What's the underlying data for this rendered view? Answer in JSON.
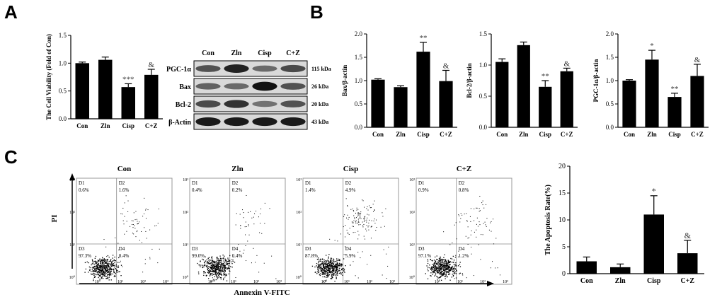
{
  "panels": {
    "a": "A",
    "b": "B",
    "c": "C"
  },
  "chart_data": [
    {
      "id": "cell-viability",
      "type": "bar",
      "categories": [
        "Con",
        "Zln",
        "Cisp",
        "C+Z"
      ],
      "values": [
        1.0,
        1.06,
        0.57,
        0.79
      ],
      "errors": [
        0.02,
        0.05,
        0.06,
        0.1
      ],
      "annotations": [
        "",
        "",
        "***",
        "&"
      ],
      "ylabel": "The Cell Viability (Fold of Con)",
      "ylim": [
        0,
        1.5
      ],
      "yticks": [
        "0.0",
        "0.5",
        "1.0",
        "1.5"
      ]
    },
    {
      "id": "bax-actin",
      "type": "bar",
      "categories": [
        "Con",
        "Zln",
        "Cisp",
        "C+Z"
      ],
      "values": [
        1.02,
        0.86,
        1.62,
        0.99
      ],
      "errors": [
        0.02,
        0.03,
        0.2,
        0.23
      ],
      "annotations": [
        "",
        "",
        "**",
        "&"
      ],
      "ylabel": "Bax/β-actin",
      "ylim": [
        0,
        2.0
      ],
      "yticks": [
        "0.0",
        "0.5",
        "1.0",
        "1.5",
        "2.0"
      ]
    },
    {
      "id": "bcl2-actin",
      "type": "bar",
      "categories": [
        "Con",
        "Zln",
        "Cisp",
        "C+Z"
      ],
      "values": [
        1.05,
        1.32,
        0.65,
        0.9
      ],
      "errors": [
        0.05,
        0.05,
        0.1,
        0.05
      ],
      "annotations": [
        "",
        "",
        "**",
        "&"
      ],
      "ylabel": "Bcl-2/β-actin",
      "ylim": [
        0,
        1.5
      ],
      "yticks": [
        "0.0",
        "0.5",
        "1.0",
        "1.5"
      ]
    },
    {
      "id": "pgc-actin",
      "type": "bar",
      "categories": [
        "Con",
        "Zln",
        "Cisp",
        "C+Z"
      ],
      "values": [
        1.0,
        1.45,
        0.65,
        1.1
      ],
      "errors": [
        0.02,
        0.2,
        0.08,
        0.25
      ],
      "annotations": [
        "",
        "*",
        "**",
        "&"
      ],
      "ylabel": "PGC-1α/β-actin",
      "ylim": [
        0,
        2.0
      ],
      "yticks": [
        "0.0",
        "0.5",
        "1.0",
        "1.5",
        "2.0"
      ]
    },
    {
      "id": "apoptosis-rate",
      "type": "bar",
      "categories": [
        "Con",
        "Zln",
        "Cisp",
        "C+Z"
      ],
      "values": [
        2.3,
        1.2,
        11.0,
        3.8
      ],
      "errors": [
        0.8,
        0.6,
        3.5,
        2.4
      ],
      "annotations": [
        "",
        "",
        "*",
        "&"
      ],
      "ylabel": "The Apoptosis Rate(%)",
      "ylim": [
        0,
        20
      ],
      "yticks": [
        "0",
        "5",
        "10",
        "15",
        "20"
      ]
    }
  ],
  "western_blot": {
    "lanes": [
      "Con",
      "Zln",
      "Cisp",
      "C+Z"
    ],
    "rows": [
      {
        "label": "PGC-1α",
        "kda": "115 kDa",
        "intensities": [
          0.55,
          0.85,
          0.4,
          0.6
        ]
      },
      {
        "label": "Bax",
        "kda": "26 kDa",
        "intensities": [
          0.45,
          0.4,
          0.95,
          0.55
        ]
      },
      {
        "label": "Bcl-2",
        "kda": "20 kDa",
        "intensities": [
          0.6,
          0.75,
          0.35,
          0.55
        ]
      },
      {
        "label": "β-Actin",
        "kda": "43 kDa",
        "intensities": [
          0.9,
          0.9,
          0.9,
          0.9
        ]
      }
    ]
  },
  "flow": {
    "xlabel": "Annexin V-FITC",
    "ylabel": "PI",
    "tick_labels": [
      "10⁰",
      "10¹",
      "10²",
      "10³"
    ],
    "plots": [
      {
        "title": "Con",
        "q": [
          "D1",
          "D2",
          "D3",
          "D4"
        ],
        "pct": [
          "0.6%",
          "1.6%",
          "97.3%",
          "0.4%"
        ],
        "upper": 0.25
      },
      {
        "title": "Zln",
        "q": [
          "D1",
          "D2",
          "D3",
          "D4"
        ],
        "pct": [
          "0.4%",
          "0.2%",
          "99.0%",
          "0.4%"
        ],
        "upper": 0.1
      },
      {
        "title": "Cisp",
        "q": [
          "D1",
          "D2",
          "D3",
          "D4"
        ],
        "pct": [
          "1.4%",
          "4.9%",
          "87.8%",
          "5.9%"
        ],
        "upper": 0.9
      },
      {
        "title": "C+Z",
        "q": [
          "D1",
          "D2",
          "D3",
          "D4"
        ],
        "pct": [
          "0.9%",
          "0.8%",
          "97.1%",
          "1.2%"
        ],
        "upper": 0.3
      }
    ]
  }
}
